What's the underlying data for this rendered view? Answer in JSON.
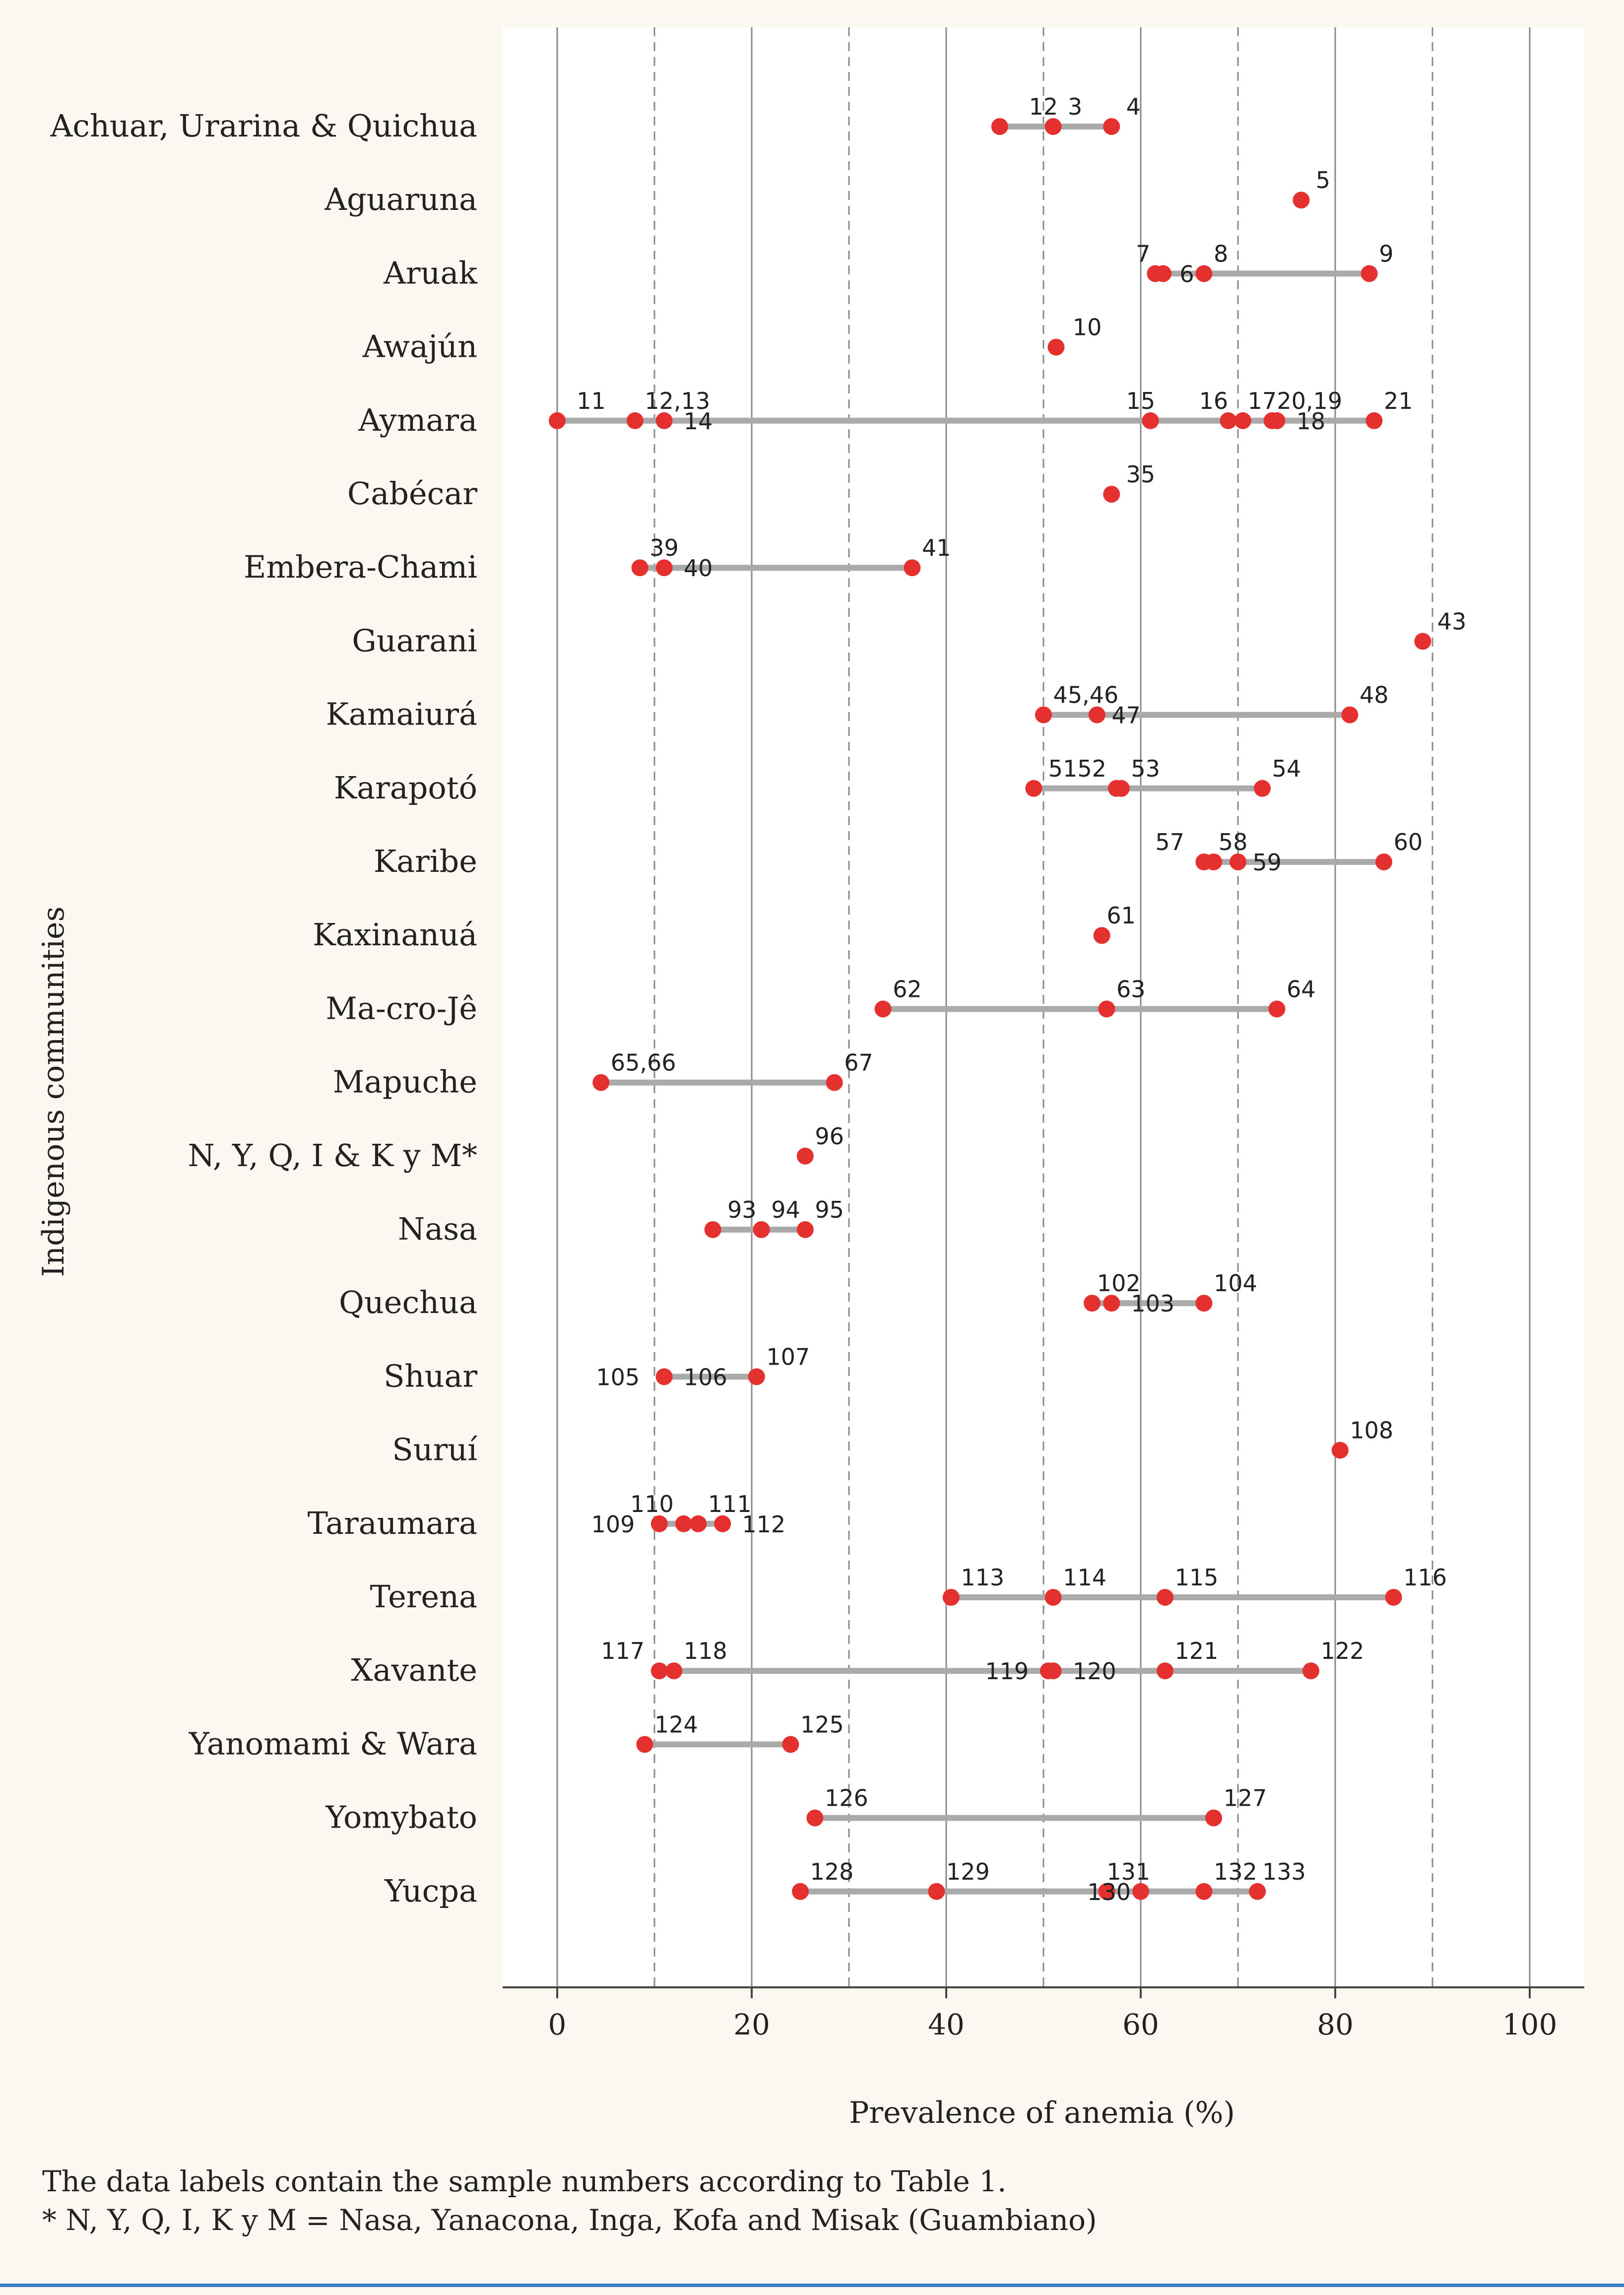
{
  "chart_data": {
    "type": "dot-range",
    "title": "",
    "xlabel": "Prevalence of anemia (%)",
    "ylabel": "Indigenous communities",
    "xlim": [
      -6,
      105
    ],
    "xticks": [
      0,
      20,
      40,
      60,
      80,
      100
    ],
    "dashed_gridlines": [
      10,
      30,
      50,
      70,
      90
    ],
    "categories": [
      "Achuar, Urarina & Quichua",
      "Aguaruna",
      "Aruak",
      "Awajún",
      "Aymara",
      "Cabécar",
      "Embera-Chami",
      "Guarani",
      "Kamaiurá",
      "Karapotó",
      "Karibe",
      "Kaxinanuá",
      "Ma-cro-Jê",
      "Mapuche",
      "N, Y, Q, I & K y M*",
      "Nasa",
      "Quechua",
      "Shuar",
      "Suruí",
      "Taraumara",
      "Terena",
      "Xavante",
      "Yanomami & Wara",
      "Yomybato",
      "Yucpa"
    ],
    "rows": [
      {
        "points": [
          {
            "x": 45.5
          },
          {
            "x": 51
          },
          {
            "x": 57
          }
        ],
        "labels": [
          {
            "t": "12",
            "x": 48.5,
            "p": "a"
          },
          {
            "t": "3",
            "x": 52.5,
            "p": "a"
          },
          {
            "t": "4",
            "x": 58.5,
            "p": "a"
          }
        ]
      },
      {
        "points": [
          {
            "x": 76.5
          }
        ],
        "labels": [
          {
            "t": "5",
            "x": 78,
            "p": "a"
          }
        ]
      },
      {
        "points": [
          {
            "x": 61.5
          },
          {
            "x": 62.3
          },
          {
            "x": 66.5
          },
          {
            "x": 83.5
          }
        ],
        "labels": [
          {
            "t": "7",
            "x": 59.5,
            "p": "a"
          },
          {
            "t": "6",
            "x": 64,
            "p": "b"
          },
          {
            "t": "8",
            "x": 67.5,
            "p": "a"
          },
          {
            "t": "9",
            "x": 84.5,
            "p": "a"
          }
        ]
      },
      {
        "points": [
          {
            "x": 51.3
          }
        ],
        "labels": [
          {
            "t": "10",
            "x": 53,
            "p": "a"
          }
        ]
      },
      {
        "points": [
          {
            "x": 0
          },
          {
            "x": 8
          },
          {
            "x": 11
          },
          {
            "x": 61
          },
          {
            "x": 69
          },
          {
            "x": 70.5
          },
          {
            "x": 73.5
          },
          {
            "x": 74
          },
          {
            "x": 84
          }
        ],
        "labels": [
          {
            "t": "11",
            "x": 2,
            "p": "a"
          },
          {
            "t": "12,13",
            "x": 9,
            "p": "a"
          },
          {
            "t": "14",
            "x": 13,
            "p": "b"
          },
          {
            "t": "15",
            "x": 58.5,
            "p": "a"
          },
          {
            "t": "16",
            "x": 66,
            "p": "a"
          },
          {
            "t": "17",
            "x": 71,
            "p": "a"
          },
          {
            "t": "20,19",
            "x": 74,
            "p": "a"
          },
          {
            "t": "18",
            "x": 76,
            "p": "b"
          },
          {
            "t": "21",
            "x": 85,
            "p": "a"
          }
        ]
      },
      {
        "points": [
          {
            "x": 57
          }
        ],
        "labels": [
          {
            "t": "35",
            "x": 58.5,
            "p": "a"
          }
        ]
      },
      {
        "points": [
          {
            "x": 8.5
          },
          {
            "x": 11
          },
          {
            "x": 36.5
          }
        ],
        "labels": [
          {
            "t": "39",
            "x": 9.5,
            "p": "a"
          },
          {
            "t": "40",
            "x": 13,
            "p": "b"
          },
          {
            "t": "41",
            "x": 37.5,
            "p": "a"
          }
        ]
      },
      {
        "points": [
          {
            "x": 89
          }
        ],
        "labels": [
          {
            "t": "43",
            "x": 90.5,
            "p": "a"
          }
        ]
      },
      {
        "points": [
          {
            "x": 50
          },
          {
            "x": 55.5
          },
          {
            "x": 81.5
          }
        ],
        "labels": [
          {
            "t": "45,46",
            "x": 51,
            "p": "a"
          },
          {
            "t": "47",
            "x": 57,
            "p": "b"
          },
          {
            "t": "48",
            "x": 82.5,
            "p": "a"
          }
        ]
      },
      {
        "points": [
          {
            "x": 49
          },
          {
            "x": 57.5
          },
          {
            "x": 58
          },
          {
            "x": 72.5
          }
        ],
        "labels": [
          {
            "t": "5152",
            "x": 50.5,
            "p": "a"
          },
          {
            "t": "53",
            "x": 59,
            "p": "a"
          },
          {
            "t": "54",
            "x": 73.5,
            "p": "a"
          }
        ]
      },
      {
        "points": [
          {
            "x": 66.5
          },
          {
            "x": 67.5
          },
          {
            "x": 70
          },
          {
            "x": 85
          }
        ],
        "labels": [
          {
            "t": "57",
            "x": 61.5,
            "p": "a"
          },
          {
            "t": "58",
            "x": 68,
            "p": "a"
          },
          {
            "t": "59",
            "x": 71.5,
            "p": "b"
          },
          {
            "t": "60",
            "x": 86,
            "p": "a"
          }
        ]
      },
      {
        "points": [
          {
            "x": 56
          }
        ],
        "labels": [
          {
            "t": "61",
            "x": 56.5,
            "p": "a"
          }
        ]
      },
      {
        "points": [
          {
            "x": 33.5
          },
          {
            "x": 56.5
          },
          {
            "x": 74
          }
        ],
        "labels": [
          {
            "t": "62",
            "x": 34.5,
            "p": "a"
          },
          {
            "t": "63",
            "x": 57.5,
            "p": "a"
          },
          {
            "t": "64",
            "x": 75,
            "p": "a"
          }
        ]
      },
      {
        "points": [
          {
            "x": 4.5
          },
          {
            "x": 28.5
          }
        ],
        "labels": [
          {
            "t": "65,66",
            "x": 5.5,
            "p": "a"
          },
          {
            "t": "67",
            "x": 29.5,
            "p": "a"
          }
        ]
      },
      {
        "points": [
          {
            "x": 25.5
          }
        ],
        "labels": [
          {
            "t": "96",
            "x": 26.5,
            "p": "a"
          }
        ]
      },
      {
        "points": [
          {
            "x": 16
          },
          {
            "x": 21
          },
          {
            "x": 25.5
          }
        ],
        "labels": [
          {
            "t": "93",
            "x": 17.5,
            "p": "a"
          },
          {
            "t": "94",
            "x": 22,
            "p": "a"
          },
          {
            "t": "95",
            "x": 26.5,
            "p": "a"
          }
        ]
      },
      {
        "points": [
          {
            "x": 55
          },
          {
            "x": 57
          },
          {
            "x": 66.5
          }
        ],
        "labels": [
          {
            "t": "102",
            "x": 55.5,
            "p": "a"
          },
          {
            "t": "103",
            "x": 59,
            "p": "b"
          },
          {
            "t": "104",
            "x": 67.5,
            "p": "a"
          }
        ]
      },
      {
        "points": [
          {
            "x": 11
          },
          {
            "x": 20.5
          }
        ],
        "labels": [
          {
            "t": "105",
            "x": 4,
            "p": "b"
          },
          {
            "t": "106",
            "x": 13,
            "p": "b"
          },
          {
            "t": "107",
            "x": 21.5,
            "p": "a"
          }
        ]
      },
      {
        "points": [
          {
            "x": 80.5
          }
        ],
        "labels": [
          {
            "t": "108",
            "x": 81.5,
            "p": "a"
          }
        ]
      },
      {
        "points": [
          {
            "x": 10.5
          },
          {
            "x": 13
          },
          {
            "x": 14.5
          },
          {
            "x": 17
          }
        ],
        "labels": [
          {
            "t": "110",
            "x": 7.5,
            "p": "a"
          },
          {
            "t": "109",
            "x": 3.5,
            "p": "b"
          },
          {
            "t": "111",
            "x": 15.5,
            "p": "a"
          },
          {
            "t": "112",
            "x": 19,
            "p": "b"
          }
        ]
      },
      {
        "points": [
          {
            "x": 40.5
          },
          {
            "x": 51
          },
          {
            "x": 62.5
          },
          {
            "x": 86
          }
        ],
        "labels": [
          {
            "t": "113",
            "x": 41.5,
            "p": "a"
          },
          {
            "t": "114",
            "x": 52,
            "p": "a"
          },
          {
            "t": "115",
            "x": 63.5,
            "p": "a"
          },
          {
            "t": "116",
            "x": 87,
            "p": "a"
          }
        ]
      },
      {
        "points": [
          {
            "x": 10.5
          },
          {
            "x": 12
          },
          {
            "x": 50.5
          },
          {
            "x": 51
          },
          {
            "x": 62.5
          },
          {
            "x": 77.5
          }
        ],
        "labels": [
          {
            "t": "117",
            "x": 4.5,
            "p": "a"
          },
          {
            "t": "118",
            "x": 13,
            "p": "a"
          },
          {
            "t": "119",
            "x": 44,
            "p": "b"
          },
          {
            "t": "120",
            "x": 53,
            "p": "b"
          },
          {
            "t": "121",
            "x": 63.5,
            "p": "a"
          },
          {
            "t": "122",
            "x": 78.5,
            "p": "a"
          }
        ]
      },
      {
        "points": [
          {
            "x": 9
          },
          {
            "x": 24
          }
        ],
        "labels": [
          {
            "t": "124",
            "x": 10,
            "p": "a"
          },
          {
            "t": "125",
            "x": 25,
            "p": "a"
          }
        ]
      },
      {
        "points": [
          {
            "x": 26.5
          },
          {
            "x": 67.5
          }
        ],
        "labels": [
          {
            "t": "126",
            "x": 27.5,
            "p": "a"
          },
          {
            "t": "127",
            "x": 68.5,
            "p": "a"
          }
        ]
      },
      {
        "points": [
          {
            "x": 25
          },
          {
            "x": 39
          },
          {
            "x": 56.5
          },
          {
            "x": 60
          },
          {
            "x": 66.5
          },
          {
            "x": 72
          }
        ],
        "labels": [
          {
            "t": "128",
            "x": 26,
            "p": "a"
          },
          {
            "t": "129",
            "x": 40,
            "p": "a"
          },
          {
            "t": "130",
            "x": 54.5,
            "p": "b"
          },
          {
            "t": "131",
            "x": 56.5,
            "p": "a"
          },
          {
            "t": "132",
            "x": 67.5,
            "p": "a"
          },
          {
            "t": "133",
            "x": 72.5,
            "p": "a"
          }
        ]
      }
    ],
    "colors": {
      "dot": "#e53030",
      "range_line": "#aaaaaa",
      "plot_bg": "#ffffff",
      "page_bg": "#fdf7f1"
    }
  },
  "notes": [
    "The data labels contain the sample numbers according to Table 1.",
    "* N, Y, Q, I, K y M = Nasa, Yanacona, Inga, Kofa and Misak (Guambiano)"
  ]
}
